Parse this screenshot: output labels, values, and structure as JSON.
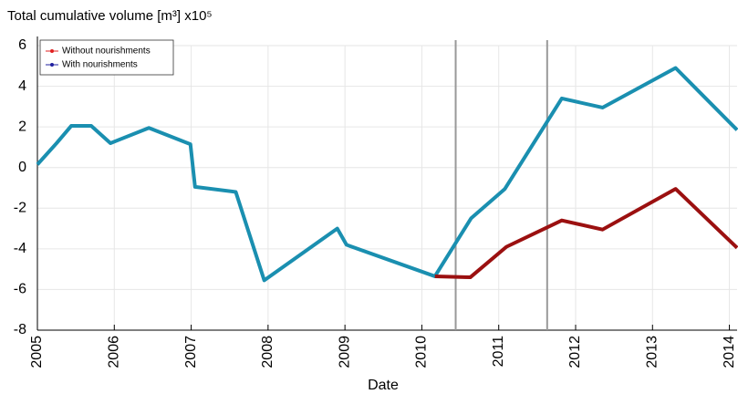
{
  "chart_data": {
    "type": "line",
    "title": "Total cumulative volume [m³] x10⁵",
    "xlabel": "Date",
    "series": [
      {
        "name": "Without nourishments",
        "color": "#9b1010",
        "marker_color": "#e02020",
        "x": [
          2010.17,
          2010.63,
          2011.1,
          2011.82,
          2012.35,
          2013.3,
          2014.1
        ],
        "values": [
          -5.35,
          -5.4,
          -3.9,
          -2.6,
          -3.05,
          -1.05,
          -3.95
        ]
      },
      {
        "name": "With nourishments",
        "color": "#1a8fb0",
        "marker_color": "#2020a0",
        "x": [
          2005.0,
          2005.25,
          2005.44,
          2005.7,
          2005.95,
          2006.45,
          2006.99,
          2007.05,
          2007.58,
          2007.95,
          2008.9,
          2009.02,
          2010.17,
          2010.64,
          2011.08,
          2011.82,
          2012.35,
          2013.3,
          2014.1
        ],
        "values": [
          0.15,
          1.2,
          2.05,
          2.05,
          1.2,
          1.95,
          1.15,
          -0.95,
          -1.2,
          -5.55,
          -3.0,
          -3.8,
          -5.35,
          -2.5,
          -1.05,
          3.4,
          2.95,
          4.9,
          1.85
        ]
      }
    ],
    "vlines": [
      2010.44,
      2011.63
    ],
    "xlim": [
      2005,
      2014.1
    ],
    "xticks": [
      2005,
      2006,
      2007,
      2008,
      2009,
      2010,
      2011,
      2012,
      2013,
      2014
    ],
    "ylim": [
      -8,
      6
    ],
    "yticks": [
      -8,
      -6,
      -4,
      -2,
      0,
      2,
      4,
      6
    ],
    "grid": true,
    "legend": "upper-left"
  }
}
